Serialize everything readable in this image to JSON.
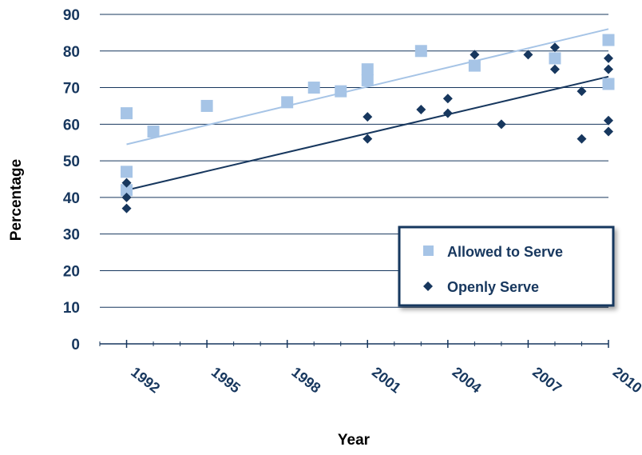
{
  "chart_data": {
    "type": "scatter",
    "xlabel": "Year",
    "ylabel": "Percentage",
    "xlim": [
      1991,
      2010
    ],
    "ylim": [
      0,
      90
    ],
    "x_tick_labels": [
      "1992",
      "1995",
      "1998",
      "2001",
      "2004",
      "2007",
      "2010"
    ],
    "y_tick_labels": [
      "0",
      "10",
      "20",
      "30",
      "40",
      "50",
      "60",
      "70",
      "80",
      "90"
    ],
    "grid": "horizontal",
    "legend_position": "bottom-right",
    "series": [
      {
        "name": "Allowed to Serve",
        "marker": "square",
        "color": "#a6c4e6",
        "trendline": {
          "x": [
            1992,
            2010
          ],
          "y": [
            54.5,
            86
          ]
        },
        "points": [
          {
            "x": 1992,
            "y": 63
          },
          {
            "x": 1992,
            "y": 47
          },
          {
            "x": 1992,
            "y": 42
          },
          {
            "x": 1993,
            "y": 58
          },
          {
            "x": 1995,
            "y": 65
          },
          {
            "x": 1998,
            "y": 66
          },
          {
            "x": 1999,
            "y": 70
          },
          {
            "x": 2000,
            "y": 69
          },
          {
            "x": 2001,
            "y": 75
          },
          {
            "x": 2001,
            "y": 72
          },
          {
            "x": 2003,
            "y": 80
          },
          {
            "x": 2005,
            "y": 76
          },
          {
            "x": 2008,
            "y": 78
          },
          {
            "x": 2010,
            "y": 83
          },
          {
            "x": 2010,
            "y": 71
          }
        ]
      },
      {
        "name": "Openly Serve",
        "marker": "diamond",
        "color": "#17375e",
        "trendline": {
          "x": [
            1992,
            2010
          ],
          "y": [
            42,
            73
          ]
        },
        "points": [
          {
            "x": 1992,
            "y": 44
          },
          {
            "x": 1992,
            "y": 40
          },
          {
            "x": 1992,
            "y": 37
          },
          {
            "x": 2001,
            "y": 62
          },
          {
            "x": 2001,
            "y": 56
          },
          {
            "x": 2003,
            "y": 64
          },
          {
            "x": 2004,
            "y": 67
          },
          {
            "x": 2004,
            "y": 63
          },
          {
            "x": 2005,
            "y": 79
          },
          {
            "x": 2006,
            "y": 60
          },
          {
            "x": 2007,
            "y": 79
          },
          {
            "x": 2008,
            "y": 81
          },
          {
            "x": 2008,
            "y": 75
          },
          {
            "x": 2009,
            "y": 69
          },
          {
            "x": 2009,
            "y": 56
          },
          {
            "x": 2010,
            "y": 78
          },
          {
            "x": 2010,
            "y": 75
          },
          {
            "x": 2010,
            "y": 61
          },
          {
            "x": 2010,
            "y": 58
          }
        ]
      }
    ]
  }
}
